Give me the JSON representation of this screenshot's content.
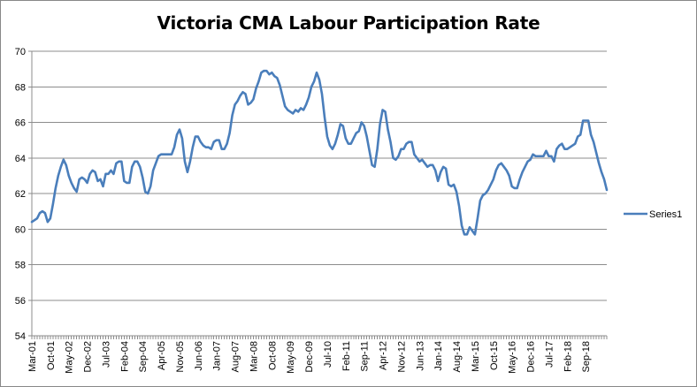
{
  "chart_data": {
    "type": "line",
    "title": "Victoria CMA Labour Participation Rate",
    "xlabel": "",
    "ylabel": "",
    "ylim": [
      54,
      70
    ],
    "y_ticks": [
      54,
      56,
      58,
      60,
      62,
      64,
      66,
      68,
      70
    ],
    "x_tick_labels": [
      "Mar-01",
      "Oct-01",
      "May-02",
      "Dec-02",
      "Jul-03",
      "Feb-04",
      "Sep-04",
      "Apr-05",
      "Nov-05",
      "Jun-06",
      "Jan-07",
      "Aug-07",
      "Mar-08",
      "Oct-08",
      "May-09",
      "Dec-09",
      "Jul-10",
      "Feb-11",
      "Sep-11",
      "Apr-12",
      "Nov-12",
      "Jun-13",
      "Jan-14",
      "Aug-14",
      "Mar-15",
      "Oct-15",
      "May-16",
      "Dec-16",
      "Jul-17",
      "Feb-18",
      "Sep-18"
    ],
    "grid": true,
    "legend_position": "right",
    "series": [
      {
        "name": "Series1",
        "color": "#4a7ebb",
        "start": "Mar-01",
        "frequency": "monthly",
        "values": [
          60.4,
          60.5,
          60.6,
          60.9,
          61.0,
          60.9,
          60.4,
          60.6,
          61.4,
          62.3,
          63.0,
          63.5,
          63.9,
          63.6,
          63.0,
          62.6,
          62.3,
          62.1,
          62.8,
          62.9,
          62.8,
          62.6,
          63.1,
          63.3,
          63.2,
          62.7,
          62.8,
          62.4,
          63.1,
          63.1,
          63.3,
          63.1,
          63.7,
          63.8,
          63.8,
          62.7,
          62.6,
          62.6,
          63.5,
          63.8,
          63.8,
          63.5,
          62.9,
          62.1,
          62.0,
          62.4,
          63.3,
          63.7,
          64.1,
          64.2,
          64.2,
          64.2,
          64.2,
          64.2,
          64.6,
          65.3,
          65.6,
          65.1,
          63.8,
          63.2,
          63.8,
          64.6,
          65.2,
          65.2,
          64.9,
          64.7,
          64.6,
          64.6,
          64.5,
          64.9,
          65.0,
          65.0,
          64.5,
          64.5,
          64.8,
          65.4,
          66.4,
          67.0,
          67.2,
          67.5,
          67.7,
          67.6,
          67.0,
          67.1,
          67.3,
          67.9,
          68.3,
          68.8,
          68.9,
          68.9,
          68.7,
          68.8,
          68.6,
          68.5,
          68.1,
          67.5,
          66.9,
          66.7,
          66.6,
          66.5,
          66.7,
          66.6,
          66.8,
          66.7,
          67.0,
          67.4,
          68.0,
          68.3,
          68.8,
          68.4,
          67.6,
          66.3,
          65.2,
          64.7,
          64.5,
          64.8,
          65.3,
          65.9,
          65.8,
          65.1,
          64.8,
          64.8,
          65.1,
          65.4,
          65.5,
          66.0,
          65.8,
          65.2,
          64.4,
          63.6,
          63.5,
          64.5,
          65.9,
          66.7,
          66.6,
          65.6,
          64.9,
          64.0,
          63.9,
          64.1,
          64.5,
          64.5,
          64.8,
          64.9,
          64.9,
          64.2,
          64.0,
          63.8,
          63.9,
          63.7,
          63.5,
          63.6,
          63.6,
          63.3,
          62.7,
          63.2,
          63.5,
          63.4,
          62.5,
          62.4,
          62.5,
          62.1,
          61.3,
          60.2,
          59.7,
          59.7,
          60.1,
          59.9,
          59.7,
          60.6,
          61.6,
          61.9,
          62.0,
          62.2,
          62.5,
          62.8,
          63.3,
          63.6,
          63.7,
          63.5,
          63.3,
          63.0,
          62.4,
          62.3,
          62.3,
          62.8,
          63.2,
          63.5,
          63.8,
          63.9,
          64.2,
          64.1,
          64.1,
          64.1,
          64.1,
          64.4,
          64.1,
          64.1,
          63.8,
          64.5,
          64.7,
          64.8,
          64.5,
          64.5,
          64.6,
          64.7,
          64.8,
          65.2,
          65.3,
          66.1,
          66.1,
          66.1,
          65.3,
          64.9,
          64.3,
          63.7,
          63.2,
          62.8,
          62.2
        ]
      }
    ]
  }
}
